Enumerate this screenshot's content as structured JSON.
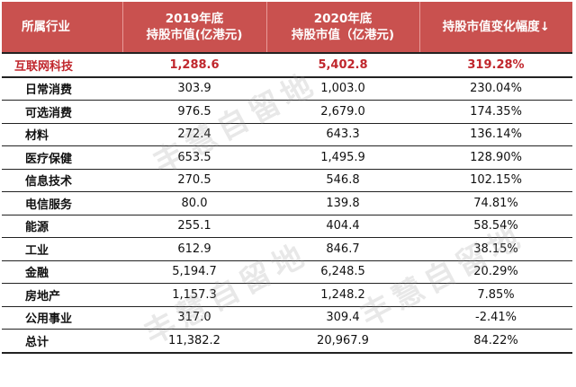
{
  "headers": [
    "所属行业",
    "2019年底\n持股市值(亿港元)",
    "2020年底\n持股市值（亿港元)",
    "持股市值变化幅度↓"
  ],
  "rows": [
    {
      "industry": "互联网科技",
      "v2019": "1,288.6",
      "v2020": "5,402.8",
      "change": "319.28%"
    },
    {
      "industry": "日常消费",
      "v2019": "303.9",
      "v2020": "1,003.0",
      "change": "230.04%"
    },
    {
      "industry": "可选消费",
      "v2019": "976.5",
      "v2020": "2,679.0",
      "change": "174.35%"
    },
    {
      "industry": "材料",
      "v2019": "272.4",
      "v2020": "643.3",
      "change": "136.14%"
    },
    {
      "industry": "医疗保健",
      "v2019": "653.5",
      "v2020": "1,495.9",
      "change": "128.90%"
    },
    {
      "industry": "信息技术",
      "v2019": "270.5",
      "v2020": "546.8",
      "change": "102.15%"
    },
    {
      "industry": "电信服务",
      "v2019": "80.0",
      "v2020": "139.8",
      "change": "74.81%"
    },
    {
      "industry": "能源",
      "v2019": "255.1",
      "v2020": "404.4",
      "change": "58.54%"
    },
    {
      "industry": "工业",
      "v2019": "612.9",
      "v2020": "846.7",
      "change": "38.15%"
    },
    {
      "industry": "金融",
      "v2019": "5,194.7",
      "v2020": "6,248.5",
      "change": "20.29%"
    },
    {
      "industry": "房地产",
      "v2019": "1,157.3",
      "v2020": "1,248.2",
      "change": "7.85%"
    },
    {
      "industry": "公用事业",
      "v2019": "317.0",
      "v2020": "309.4",
      "change": "-2.41%"
    },
    {
      "industry": "总计",
      "v2019": "11,382.2",
      "v2020": "20,967.9",
      "change": "84.22%"
    }
  ],
  "watermark": "丰慧自留地",
  "colors": {
    "header_bg": "#c9514f",
    "highlight_text": "#c0262c"
  }
}
